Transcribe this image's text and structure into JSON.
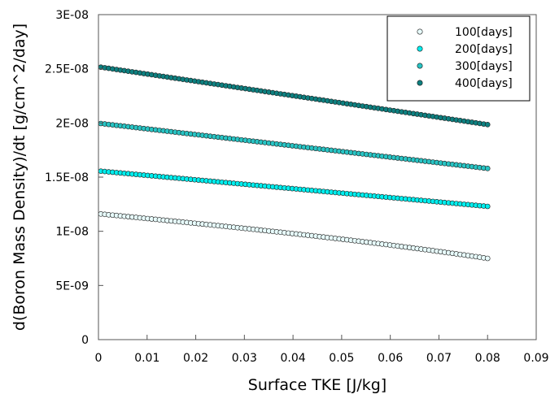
{
  "chart_data": {
    "type": "scatter",
    "title": "",
    "xlabel": "Surface TKE [J/kg]",
    "ylabel": "d(Boron Mass Density)/dt [g/cm^2/day]",
    "xlim": [
      0,
      0.09
    ],
    "ylim": [
      0,
      3e-08
    ],
    "x_ticks": [
      0,
      0.01,
      0.02,
      0.03,
      0.04,
      0.05,
      0.06,
      0.07,
      0.08,
      0.09
    ],
    "x_tick_labels": [
      "0",
      "0.01",
      "0.02",
      "0.03",
      "0.04",
      "0.05",
      "0.06",
      "0.07",
      "0.08",
      "0.09"
    ],
    "y_ticks": [
      0,
      5e-09,
      1e-08,
      1.5e-08,
      2e-08,
      2.5e-08,
      3e-08
    ],
    "y_tick_labels": [
      "0",
      "5E-09",
      "1E-08",
      "1.5E-08",
      "2E-08",
      "2.5E-08",
      "3E-08"
    ],
    "grid": false,
    "legend_position": "top-right",
    "x_range": [
      0.0005,
      0.08
    ],
    "n_points": 100,
    "series": [
      {
        "name": "100[days]",
        "color": "#e8fcfc",
        "start": 1.16e-08,
        "end": 8.1e-09,
        "curvature": -6e-10
      },
      {
        "name": "200[days]",
        "color": "#00eeee",
        "start": 1.555e-08,
        "end": 1.23e-08,
        "curvature": 0
      },
      {
        "name": "300[days]",
        "color": "#28c4c4",
        "start": 1.995e-08,
        "end": 1.58e-08,
        "curvature": 0
      },
      {
        "name": "400[days]",
        "color": "#0e8080",
        "start": 2.515e-08,
        "end": 1.985e-08,
        "curvature": 0
      }
    ]
  }
}
